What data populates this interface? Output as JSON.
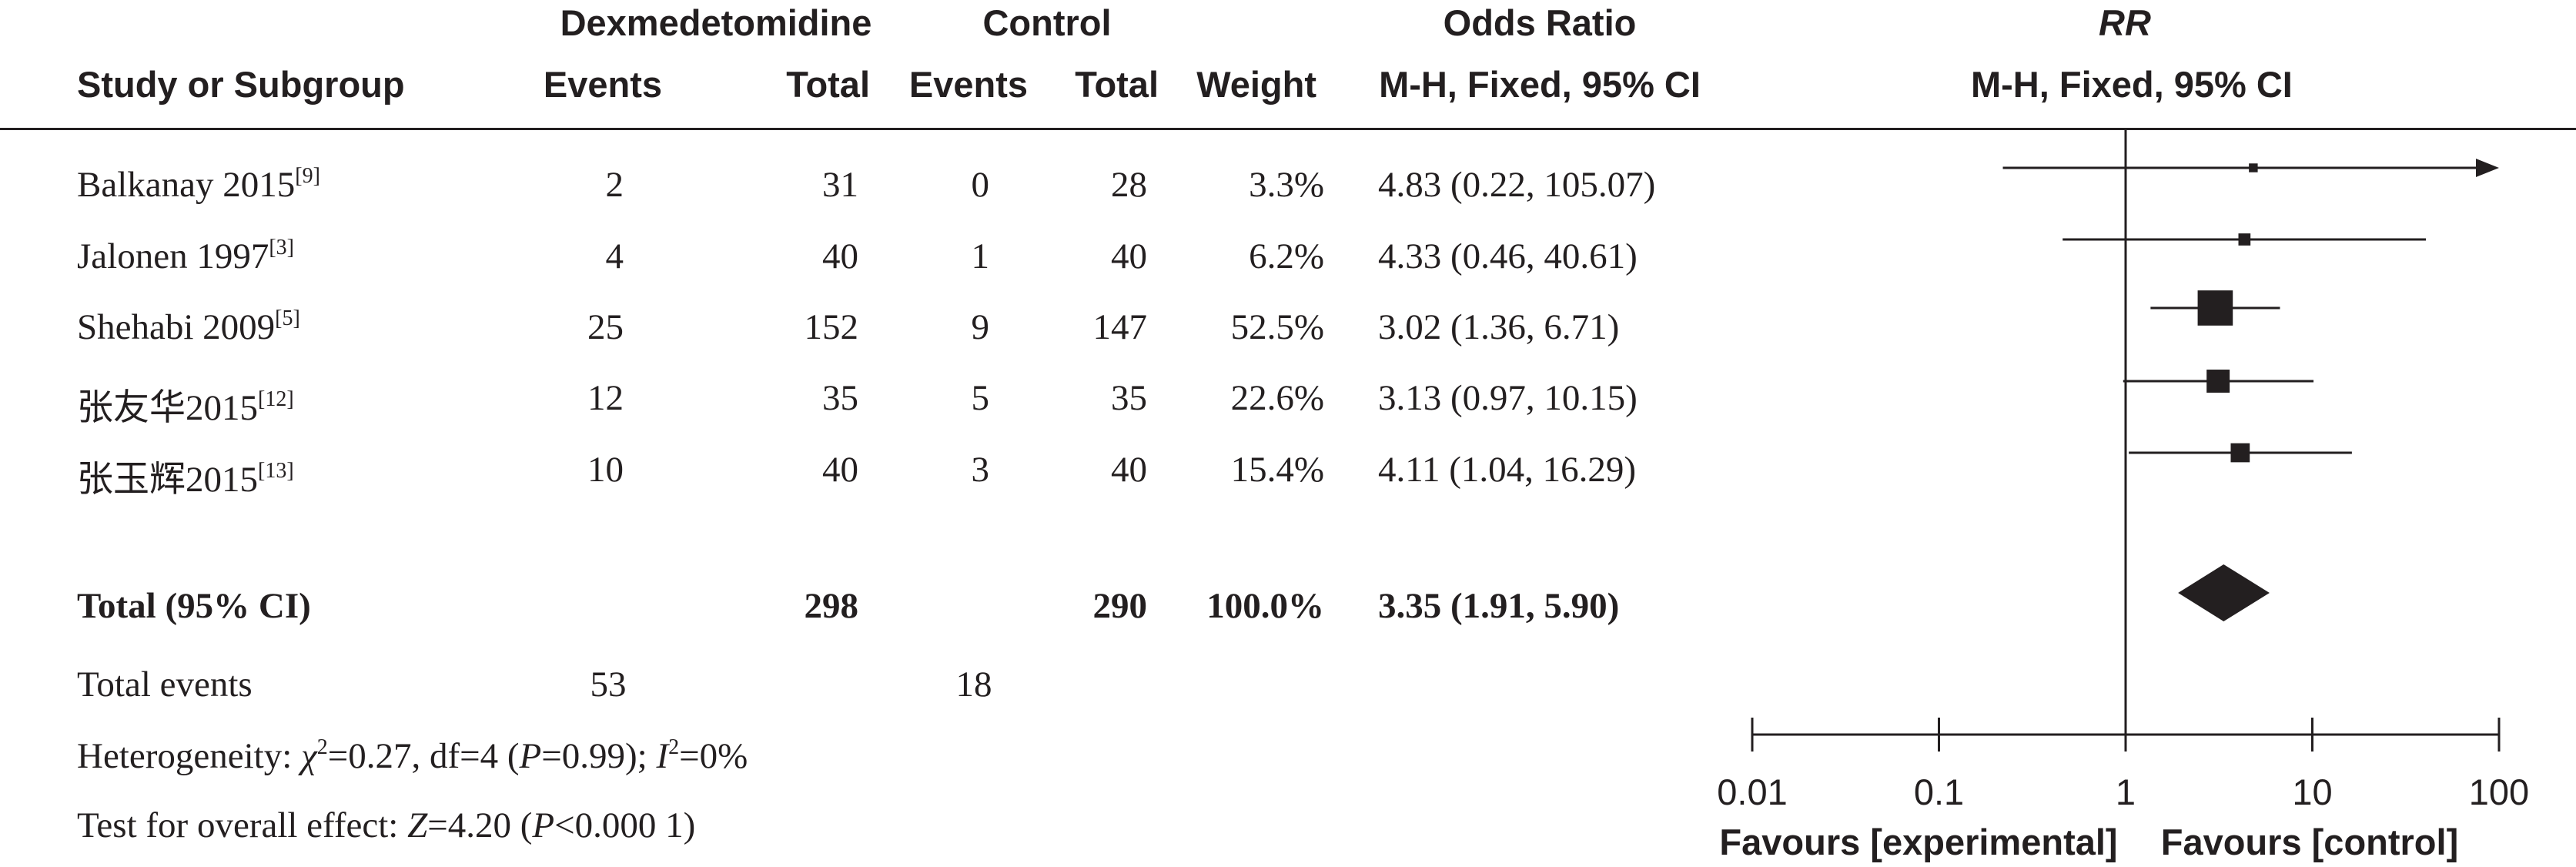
{
  "header": {
    "group_exp": "Dexmedetomidine",
    "group_ctrl": "Control",
    "effect_name": "Odds Ratio",
    "plot_name": "RR",
    "col_study": "Study or Subgroup",
    "col_events_exp": "Events",
    "col_total_exp": "Total",
    "col_events_ctrl": "Events",
    "col_total_ctrl": "Total",
    "col_weight": "Weight",
    "col_ci": "M-H, Fixed, 95% CI",
    "col_plot_ci": "M-H, Fixed, 95% CI"
  },
  "studies": [
    {
      "name": "Balkanay 2015",
      "ref": "[9]",
      "events_exp": "2",
      "total_exp": "31",
      "events_ctrl": "0",
      "total_ctrl": "28",
      "weight": "3.3%",
      "ci_text": "4.83 (0.22, 105.07)",
      "or": 4.83,
      "lo": 0.22,
      "hi": 105.07
    },
    {
      "name": "Jalonen 1997",
      "ref": "[3]",
      "events_exp": "4",
      "total_exp": "40",
      "events_ctrl": "1",
      "total_ctrl": "40",
      "weight": "6.2%",
      "ci_text": "4.33 (0.46, 40.61)",
      "or": 4.33,
      "lo": 0.46,
      "hi": 40.61
    },
    {
      "name": "Shehabi 2009",
      "ref": "[5]",
      "events_exp": "25",
      "total_exp": "152",
      "events_ctrl": "9",
      "total_ctrl": "147",
      "weight": "52.5%",
      "ci_text": "3.02 (1.36, 6.71)",
      "or": 3.02,
      "lo": 1.36,
      "hi": 6.71
    },
    {
      "name": "张友华2015",
      "ref": "[12]",
      "events_exp": "12",
      "total_exp": "35",
      "events_ctrl": "5",
      "total_ctrl": "35",
      "weight": "22.6%",
      "ci_text": "3.13 (0.97, 10.15)",
      "or": 3.13,
      "lo": 0.97,
      "hi": 10.15
    },
    {
      "name": "张玉辉2015",
      "ref": "[13]",
      "events_exp": "10",
      "total_exp": "40",
      "events_ctrl": "3",
      "total_ctrl": "40",
      "weight": "15.4%",
      "ci_text": "4.11 (1.04, 16.29)",
      "or": 4.11,
      "lo": 1.04,
      "hi": 16.29
    }
  ],
  "total": {
    "label": "Total (95% CI)",
    "total_exp": "298",
    "total_ctrl": "290",
    "weight": "100.0%",
    "ci_text": "3.35 (1.91, 5.90)",
    "or": 3.35,
    "lo": 1.91,
    "hi": 5.9
  },
  "total_events": {
    "label": "Total events",
    "exp": "53",
    "ctrl": "18"
  },
  "heterogeneity": {
    "label": "Heterogeneity: ",
    "chi_sym": "χ",
    "chi_sup": "2",
    "chi_rest": "=0.27, df=4 (",
    "p_sym": "P",
    "p_rest": "=0.99); ",
    "i_sym": "I",
    "i_sup": "2",
    "i_rest": "=0%"
  },
  "overall_effect": {
    "label": "Test for overall effect: ",
    "z_sym": "Z",
    "z_rest": "=4.20 (",
    "p_sym": "P",
    "p_rest": "<0.000 1)"
  },
  "chart_data": {
    "type": "forest",
    "scale": "log",
    "xlim": [
      0.01,
      100
    ],
    "ticks": [
      0.01,
      0.1,
      1,
      10,
      100
    ],
    "tick_labels": [
      "0.01",
      "0.1",
      "1",
      "10",
      "100"
    ],
    "reference": 1,
    "favours_left": "Favours [experimental]",
    "favours_right": "Favours [control]",
    "line_color": "#231f20"
  }
}
